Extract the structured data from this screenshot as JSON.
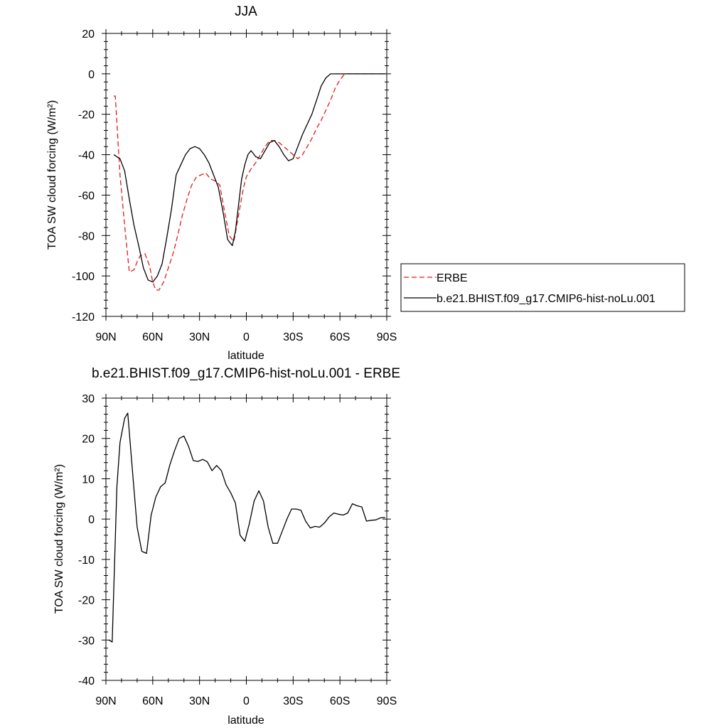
{
  "chart_data": [
    {
      "type": "line",
      "title": "JJA",
      "xlabel": "latitude",
      "ylabel": "TOA SW cloud forcing (W/m²)",
      "xlim": [
        90,
        -90
      ],
      "ylim": [
        -120,
        20
      ],
      "x_ticks": [
        90,
        60,
        30,
        0,
        -30,
        -60,
        -90
      ],
      "x_tick_labels": [
        "90N",
        "60N",
        "30N",
        "0",
        "30S",
        "60S",
        "90S"
      ],
      "y_ticks": [
        -120,
        -100,
        -80,
        -60,
        -40,
        -20,
        0,
        20
      ],
      "y_tick_labels": [
        "-120",
        "-100",
        "-80",
        "-60",
        "-40",
        "-20",
        "0",
        "20"
      ],
      "grid": false,
      "legend": "right",
      "series": [
        {
          "name": "ERBE",
          "color": "#e41a1c",
          "dash": "dashed",
          "x": [
            85,
            84,
            81,
            78,
            75,
            72,
            70,
            68,
            65,
            62,
            60,
            58,
            56,
            53,
            50,
            47,
            44,
            41,
            38,
            35,
            32,
            29,
            26,
            23,
            20,
            17,
            14,
            11,
            8,
            5,
            2,
            0,
            -3,
            -6,
            -9,
            -12,
            -15,
            -18,
            -21,
            -24,
            -27,
            -30,
            -33,
            -36,
            -39,
            -42,
            -45,
            -48,
            -51,
            -54,
            -57,
            -60,
            -63,
            -66,
            -69,
            -72,
            -75,
            -78,
            -81,
            -84,
            -87,
            -89
          ],
          "y": [
            -11,
            -11,
            -50,
            -75,
            -98,
            -97,
            -93,
            -90,
            -89,
            -95,
            -103,
            -107,
            -107,
            -103,
            -96,
            -89,
            -80,
            -70,
            -62,
            -55,
            -51,
            -50,
            -49,
            -52,
            -53,
            -55,
            -68,
            -80,
            -83,
            -70,
            -57,
            -51,
            -47,
            -44,
            -40,
            -36,
            -33,
            -33,
            -34,
            -36,
            -38,
            -40,
            -42,
            -40,
            -36,
            -32,
            -27,
            -23,
            -18,
            -13,
            -7,
            -3,
            0,
            0,
            0,
            0,
            0,
            0,
            0,
            0,
            0,
            0
          ]
        },
        {
          "name": "b.e21.BHIST.f09_g17.CMIP6-hist-noLu.001",
          "color": "#000000",
          "dash": "solid",
          "x": [
            85,
            81,
            78,
            75,
            72,
            69,
            66,
            63,
            60,
            57,
            54,
            51,
            48,
            45,
            42,
            39,
            36,
            33,
            30,
            27,
            24,
            21,
            18,
            15,
            12,
            9,
            7,
            5,
            3,
            1,
            -1,
            -3,
            -6,
            -9,
            -12,
            -15,
            -18,
            -21,
            -24,
            -27,
            -30,
            -33,
            -36,
            -39,
            -42,
            -45,
            -48,
            -51,
            -54,
            -57,
            -60,
            -63,
            -66,
            -69,
            -72,
            -75,
            -78,
            -81,
            -84,
            -87,
            -89
          ],
          "y": [
            -40,
            -42,
            -48,
            -62,
            -75,
            -85,
            -96,
            -102,
            -103,
            -100,
            -94,
            -81,
            -67,
            -50,
            -45,
            -40,
            -37,
            -36,
            -37,
            -40,
            -44,
            -50,
            -56,
            -68,
            -82,
            -85,
            -78,
            -65,
            -52,
            -45,
            -40,
            -38,
            -41,
            -42,
            -38,
            -34,
            -33,
            -36,
            -40,
            -43,
            -42,
            -36,
            -30,
            -25,
            -20,
            -13,
            -6,
            -2,
            0,
            0,
            0,
            0,
            0,
            0,
            0,
            0,
            0,
            0,
            0,
            0,
            0
          ]
        }
      ]
    },
    {
      "type": "line",
      "title": "b.e21.BHIST.f09_g17.CMIP6-hist-noLu.001 - ERBE",
      "xlabel": "latitude",
      "ylabel": "TOA SW cloud forcing (W/m²)",
      "xlim": [
        90,
        -90
      ],
      "ylim": [
        -40,
        30
      ],
      "x_ticks": [
        90,
        60,
        30,
        0,
        -30,
        -60,
        -90
      ],
      "x_tick_labels": [
        "90N",
        "60N",
        "30N",
        "0",
        "30S",
        "60S",
        "90S"
      ],
      "y_ticks": [
        -40,
        -30,
        -20,
        -10,
        0,
        10,
        20,
        30
      ],
      "y_tick_labels": [
        "-40",
        "-30",
        "-20",
        "-10",
        "0",
        "10",
        "20",
        "30"
      ],
      "grid": false,
      "series": [
        {
          "color": "#000000",
          "dash": "solid",
          "x": [
            88,
            86,
            83,
            81,
            78,
            76,
            73,
            70,
            67,
            64,
            61,
            58,
            55,
            52,
            49,
            46,
            43,
            40,
            37,
            34,
            31,
            28,
            25,
            22,
            19,
            16,
            13,
            10,
            7,
            4,
            1,
            -2,
            -5,
            -8,
            -11,
            -14,
            -17,
            -20,
            -23,
            -26,
            -29,
            -32,
            -35,
            -38,
            -41,
            -44,
            -47,
            -50,
            -53,
            -56,
            -59,
            -62,
            -65,
            -68,
            -71,
            -74,
            -77,
            -80,
            -83,
            -86,
            -89
          ],
          "y": [
            -30,
            -30.5,
            8,
            19,
            25,
            26.3,
            12,
            -2,
            -8,
            -8.5,
            1,
            5.5,
            8,
            9,
            13.5,
            17,
            20,
            20.6,
            18,
            14.5,
            14.3,
            14.8,
            14.2,
            12,
            13.3,
            12,
            8.5,
            6.5,
            4,
            -4,
            -5.5,
            -1,
            4.5,
            7,
            4.5,
            -2,
            -6,
            -6,
            -3,
            0,
            2.5,
            2.5,
            2.2,
            -0.5,
            -2.2,
            -1.8,
            -2,
            -1,
            0.5,
            1.5,
            1.2,
            1,
            1.5,
            3.8,
            3.3,
            3,
            -0.5,
            -0.3,
            -0.2,
            0.3,
            0.4
          ]
        }
      ]
    }
  ]
}
